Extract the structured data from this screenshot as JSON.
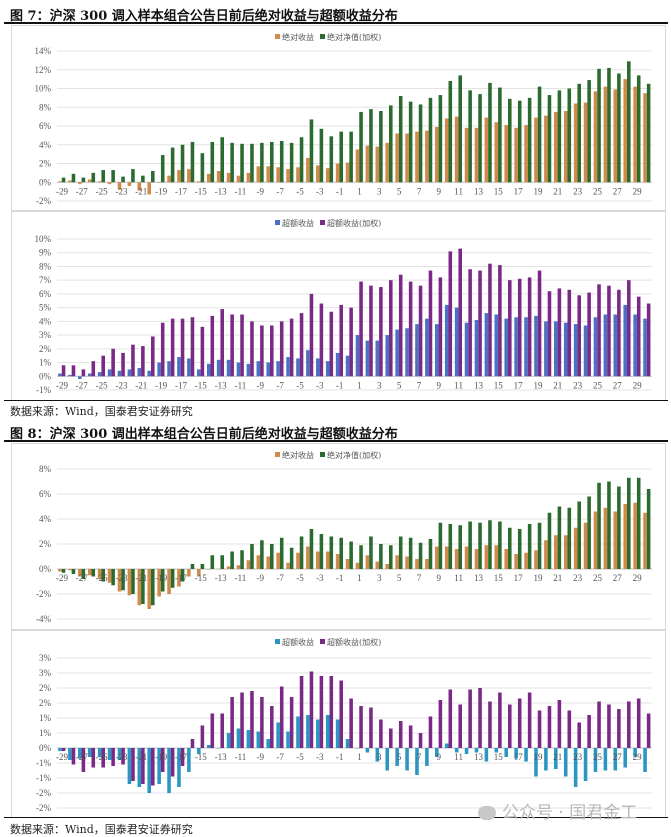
{
  "figure7": {
    "title": "图 7：沪深 300 调入样本组合公告日前后绝对收益与超额收益分布",
    "source": "数据来源：Wind，国泰君安证券研究"
  },
  "figure8": {
    "title": "图 8：沪深 300 调出样本组合公告日前后绝对收益与超额收益分布",
    "source": "数据来源：Wind，国泰君安证券研究"
  },
  "watermark": "公众号 · 国君金工",
  "chart_data": [
    {
      "type": "bar",
      "figure": "图 7",
      "x": [
        -29,
        -28,
        -27,
        -26,
        -25,
        -24,
        -23,
        -22,
        -21,
        -20,
        -19,
        -18,
        -17,
        -16,
        -15,
        -14,
        -13,
        -12,
        -11,
        -10,
        -9,
        -8,
        -7,
        -6,
        -5,
        -4,
        -3,
        -2,
        -1,
        0,
        1,
        2,
        3,
        4,
        5,
        6,
        7,
        8,
        9,
        10,
        11,
        12,
        13,
        14,
        15,
        16,
        17,
        18,
        19,
        20,
        21,
        22,
        23,
        24,
        25,
        26,
        27,
        28,
        29,
        30
      ],
      "x_tick_labels": [
        "-29",
        "-27",
        "-25",
        "-23",
        "-21",
        "-19",
        "-17",
        "-15",
        "-13",
        "-11",
        "-9",
        "-7",
        "-5",
        "-3",
        "-1",
        "1",
        "3",
        "5",
        "7",
        "9",
        "11",
        "13",
        "15",
        "17",
        "19",
        "21",
        "23",
        "25",
        "27",
        "29"
      ],
      "y_tick_labels": [
        "14%",
        "12%",
        "10%",
        "8%",
        "6%",
        "4%",
        "2%",
        "0%",
        "-2%"
      ],
      "ylim": [
        -2,
        14
      ],
      "y_unit": "%",
      "grid": true,
      "legend": "top-center",
      "series": [
        {
          "name": "绝对收益",
          "color": "#d08a4c",
          "values": [
            0.1,
            0.2,
            -0.2,
            0.3,
            0.1,
            -0.2,
            -0.8,
            -0.4,
            -0.9,
            -1.3,
            0,
            0.7,
            1.3,
            1.4,
            0.1,
            0.9,
            1.2,
            1.0,
            0.7,
            1.0,
            1.7,
            1.7,
            1.6,
            1.4,
            1.6,
            2.6,
            1.8,
            1.5,
            2.0,
            2.1,
            3.5,
            3.9,
            3.8,
            4.2,
            5.2,
            5.2,
            5.4,
            5.5,
            5.9,
            6.8,
            7.0,
            5.8,
            5.8,
            6.9,
            6.4,
            6.1,
            5.8,
            6.1,
            6.9,
            7.1,
            7.5,
            7.6,
            8.4,
            8.5,
            9.7,
            10.2,
            9.9,
            11.0,
            10.2,
            9.5
          ]
        },
        {
          "name": "绝对净值(加权)",
          "color": "#2c6b2f",
          "values": [
            0.5,
            0.9,
            0.5,
            1.0,
            1.3,
            1.3,
            0.6,
            1.4,
            0.7,
            1.2,
            2.9,
            3.7,
            4.0,
            4.3,
            3.1,
            4.3,
            4.8,
            4.2,
            4.1,
            4.1,
            4.2,
            4.3,
            4.4,
            4.2,
            4.8,
            6.7,
            5.7,
            4.9,
            5.4,
            5.4,
            7.5,
            7.8,
            7.6,
            8.2,
            9.2,
            8.6,
            8.3,
            9.0,
            9.3,
            10.8,
            11.4,
            9.8,
            9.4,
            10.6,
            10.1,
            8.9,
            8.7,
            9.0,
            10.2,
            9.3,
            9.8,
            10.0,
            10.5,
            10.9,
            12.1,
            12.2,
            11.6,
            12.9,
            11.4,
            10.5
          ]
        }
      ]
    },
    {
      "type": "bar",
      "figure": "图 7",
      "x": [
        -29,
        -28,
        -27,
        -26,
        -25,
        -24,
        -23,
        -22,
        -21,
        -20,
        -19,
        -18,
        -17,
        -16,
        -15,
        -14,
        -13,
        -12,
        -11,
        -10,
        -9,
        -8,
        -7,
        -6,
        -5,
        -4,
        -3,
        -2,
        -1,
        0,
        1,
        2,
        3,
        4,
        5,
        6,
        7,
        8,
        9,
        10,
        11,
        12,
        13,
        14,
        15,
        16,
        17,
        18,
        19,
        20,
        21,
        22,
        23,
        24,
        25,
        26,
        27,
        28,
        29,
        30
      ],
      "x_tick_labels": [
        "-29",
        "-27",
        "-25",
        "-23",
        "-21",
        "-19",
        "-17",
        "-15",
        "-13",
        "-11",
        "-9",
        "-7",
        "-5",
        "-3",
        "-1",
        "1",
        "3",
        "5",
        "7",
        "9",
        "11",
        "13",
        "15",
        "17",
        "19",
        "21",
        "23",
        "25",
        "27",
        "29"
      ],
      "y_tick_labels": [
        "10%",
        "9%",
        "8%",
        "7%",
        "6%",
        "5%",
        "4%",
        "3%",
        "2%",
        "1%",
        "0%",
        "-1%"
      ],
      "ylim": [
        -1,
        10
      ],
      "y_unit": "%",
      "grid": true,
      "legend": "top-center",
      "series": [
        {
          "name": "超额收益",
          "color": "#4a72c2",
          "values": [
            0.2,
            0.1,
            -0.2,
            0.2,
            0.3,
            0.5,
            0.4,
            0.5,
            0.6,
            0.4,
            1.0,
            1.1,
            1.4,
            1.3,
            0.5,
            0.9,
            1.2,
            1.2,
            1.0,
            0.9,
            1.1,
            1.0,
            1.1,
            1.4,
            1.3,
            1.9,
            1.3,
            1.1,
            1.7,
            1.5,
            3.0,
            2.6,
            2.6,
            3.0,
            3.4,
            3.5,
            3.8,
            4.2,
            3.8,
            5.2,
            5.0,
            3.9,
            4.1,
            4.6,
            4.5,
            4.2,
            4.3,
            4.3,
            4.4,
            4.0,
            4.0,
            3.9,
            3.8,
            3.7,
            4.3,
            4.5,
            4.5,
            5.2,
            4.5,
            4.2
          ]
        },
        {
          "name": "超额收益(加权)",
          "color": "#7a2a86",
          "values": [
            0.8,
            0.8,
            0.5,
            1.1,
            1.5,
            2.0,
            1.7,
            2.3,
            2.2,
            2.9,
            3.9,
            4.2,
            4.2,
            4.3,
            3.6,
            4.4,
            4.9,
            4.5,
            4.5,
            4.0,
            3.7,
            3.7,
            4.0,
            4.2,
            4.6,
            6.0,
            5.3,
            4.7,
            5.2,
            5.0,
            6.9,
            6.6,
            6.5,
            7.0,
            7.4,
            6.9,
            6.6,
            7.7,
            7.2,
            9.1,
            9.3,
            7.8,
            7.7,
            8.2,
            8.1,
            7.0,
            7.1,
            7.2,
            7.7,
            6.2,
            6.4,
            6.3,
            5.9,
            6.1,
            6.7,
            6.6,
            6.3,
            7.0,
            5.8,
            5.3
          ]
        }
      ]
    },
    {
      "type": "bar",
      "figure": "图 8",
      "x": [
        -29,
        -28,
        -27,
        -26,
        -25,
        -24,
        -23,
        -22,
        -21,
        -20,
        -19,
        -18,
        -17,
        -16,
        -15,
        -14,
        -13,
        -12,
        -11,
        -10,
        -9,
        -8,
        -7,
        -6,
        -5,
        -4,
        -3,
        -2,
        -1,
        0,
        1,
        2,
        3,
        4,
        5,
        6,
        7,
        8,
        9,
        10,
        11,
        12,
        13,
        14,
        15,
        16,
        17,
        18,
        19,
        20,
        21,
        22,
        23,
        24,
        25,
        26,
        27,
        28,
        29,
        30
      ],
      "x_tick_labels": [
        "-29",
        "-27",
        "-25",
        "-23",
        "-21",
        "-19",
        "-17",
        "-15",
        "-13",
        "-11",
        "-9",
        "-7",
        "-5",
        "-3",
        "-1",
        "1",
        "3",
        "5",
        "7",
        "9",
        "11",
        "13",
        "15",
        "17",
        "19",
        "21",
        "23",
        "25",
        "27",
        "29"
      ],
      "y_tick_labels": [
        "8%",
        "6%",
        "4%",
        "2%",
        "0%",
        "-2%",
        "-4%"
      ],
      "ylim": [
        -4,
        8
      ],
      "y_unit": "%",
      "grid": true,
      "legend": "top-center",
      "series": [
        {
          "name": "绝对收益",
          "color": "#d08a4c",
          "values": [
            -0.2,
            -0.1,
            -0.6,
            -0.5,
            -0.8,
            -1.1,
            -1.8,
            -2.1,
            -2.9,
            -3.2,
            -2.2,
            -2.0,
            -1.4,
            -0.6,
            -0.6,
            0,
            0,
            0.2,
            0.3,
            0.7,
            1.1,
            1.0,
            1.3,
            0.5,
            1.3,
            1.8,
            1.4,
            1.4,
            1.2,
            0.8,
            0.5,
            1.1,
            0.6,
            0.4,
            1.1,
            1.0,
            0.8,
            0.8,
            1.8,
            1.8,
            1.6,
            1.8,
            1.6,
            1.9,
            1.9,
            1.6,
            1.2,
            1.3,
            1.5,
            2.3,
            2.7,
            2.7,
            3.3,
            3.7,
            4.6,
            4.9,
            4.6,
            5.2,
            5.3,
            4.5
          ]
        },
        {
          "name": "绝对净值(加权)",
          "color": "#2c6b2f",
          "values": [
            -0.3,
            -0.4,
            -0.8,
            -0.6,
            -1.0,
            -1.3,
            -1.7,
            -2.0,
            -2.8,
            -2.9,
            -1.8,
            -1.5,
            -1.0,
            0.4,
            0.4,
            1.1,
            1.1,
            1.4,
            1.5,
            2.0,
            2.3,
            2.0,
            2.5,
            1.7,
            2.6,
            3.2,
            2.8,
            2.6,
            2.5,
            2.2,
            1.9,
            2.6,
            2.0,
            1.9,
            2.6,
            2.5,
            2.1,
            2.4,
            3.7,
            3.6,
            3.5,
            3.8,
            3.7,
            3.9,
            3.8,
            3.3,
            3.2,
            3.6,
            3.7,
            4.5,
            5.0,
            4.9,
            5.4,
            5.8,
            6.9,
            7.0,
            6.6,
            7.3,
            7.3,
            6.4
          ]
        }
      ]
    },
    {
      "type": "bar",
      "figure": "图 8",
      "x": [
        -29,
        -28,
        -27,
        -26,
        -25,
        -24,
        -23,
        -22,
        -21,
        -20,
        -19,
        -18,
        -17,
        -16,
        -15,
        -14,
        -13,
        -12,
        -11,
        -10,
        -9,
        -8,
        -7,
        -6,
        -5,
        -4,
        -3,
        -2,
        -1,
        0,
        1,
        2,
        3,
        4,
        5,
        6,
        7,
        8,
        9,
        10,
        11,
        12,
        13,
        14,
        15,
        16,
        17,
        18,
        19,
        20,
        21,
        22,
        23,
        24,
        25,
        26,
        27,
        28,
        29,
        30
      ],
      "x_tick_labels": [
        "-29",
        "-27",
        "-25",
        "-23",
        "-21",
        "-19",
        "-17",
        "-15",
        "-13",
        "-11",
        "-9",
        "-7",
        "-5",
        "-3",
        "-1",
        "1",
        "3",
        "5",
        "7",
        "9",
        "11",
        "13",
        "15",
        "17",
        "19",
        "21",
        "23",
        "25",
        "27",
        "29"
      ],
      "y_tick_labels": [
        "3%",
        "3%",
        "2%",
        "2%",
        "1%",
        "1%",
        "0%",
        "-1%",
        "-1%",
        "-2%",
        "-2%"
      ],
      "ylim": [
        -2,
        3
      ],
      "y_unit": "%",
      "grid": true,
      "legend": "top-center",
      "series": [
        {
          "name": "超额收益",
          "color": "#2b96c2",
          "values": [
            -0.1,
            -0.4,
            -0.35,
            -0.3,
            -0.3,
            -0.4,
            -0.4,
            -1.2,
            -1.3,
            -1.5,
            -1.2,
            -1.5,
            -1.3,
            -0.8,
            -0.2,
            0.1,
            0,
            0.5,
            0.65,
            0.6,
            0.55,
            0.3,
            0.85,
            0.55,
            1.05,
            1.1,
            0.95,
            1.1,
            0.95,
            0.3,
            0,
            -0.15,
            -0.45,
            -0.75,
            -0.6,
            -0.75,
            -0.9,
            -0.6,
            -0.3,
            0.15,
            -0.15,
            -0.2,
            -0.15,
            -0.45,
            -0.15,
            -0.3,
            -0.35,
            -0.45,
            -0.95,
            -0.75,
            -0.7,
            -0.95,
            -1.3,
            -1.1,
            -0.8,
            -0.75,
            -0.75,
            -0.65,
            -0.3,
            -0.8
          ]
        },
        {
          "name": "超额收益(加权)",
          "color": "#7a2a86",
          "values": [
            -0.1,
            -0.55,
            -0.8,
            -0.65,
            -0.65,
            -0.6,
            -0.55,
            -1.1,
            -1.2,
            -1.25,
            -0.8,
            -0.95,
            -0.6,
            0.3,
            0.75,
            1.15,
            1.15,
            1.7,
            1.85,
            1.9,
            1.7,
            1.4,
            2.05,
            1.7,
            2.4,
            2.55,
            2.4,
            2.4,
            2.25,
            1.65,
            1.4,
            1.35,
            0.95,
            0.65,
            0.9,
            0.75,
            0.5,
            1.05,
            1.6,
            1.95,
            1.45,
            1.95,
            2.0,
            1.55,
            1.85,
            1.45,
            1.65,
            1.85,
            1.25,
            1.4,
            1.6,
            1.25,
            0.85,
            1.1,
            1.55,
            1.45,
            1.3,
            1.55,
            1.65,
            1.15
          ]
        }
      ]
    }
  ]
}
